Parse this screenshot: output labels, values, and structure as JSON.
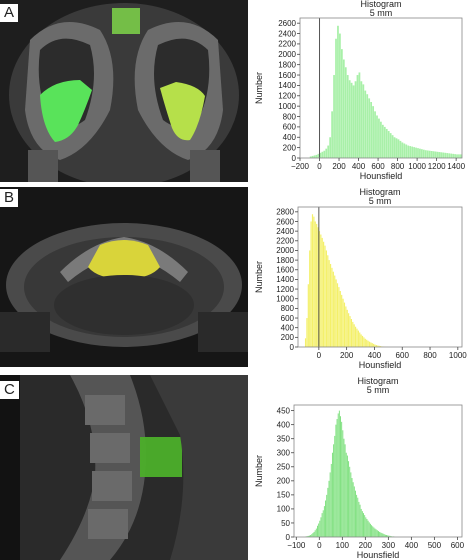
{
  "panels": [
    {
      "label": "A"
    },
    {
      "label": "B"
    },
    {
      "label": "C"
    }
  ],
  "colors": {
    "panel_a": "#a8f0a8",
    "panel_b": "#f4f06a",
    "panel_c": "#7ee07e",
    "marker": "#555555"
  },
  "chart_data": [
    {
      "type": "bar",
      "title": "Histogram",
      "subtitle": "5 mm",
      "xlabel": "Hounsfield",
      "ylabel": "Number",
      "xlim": [
        -200,
        1460
      ],
      "ylim": [
        0,
        2700
      ],
      "xticks": [
        -200,
        0,
        200,
        400,
        600,
        800,
        1000,
        1200,
        1400
      ],
      "xtick_labels": [
        "−200",
        "0",
        "200",
        "400",
        "600",
        "800",
        "1000",
        "1200",
        "1400"
      ],
      "yticks": [
        0,
        200,
        400,
        600,
        800,
        1000,
        1200,
        1400,
        1600,
        1800,
        2000,
        2200,
        2400,
        2600
      ],
      "grid": false,
      "marker_x": 0,
      "bin_start": -100,
      "bin_width": 20,
      "values": [
        30,
        40,
        50,
        60,
        80,
        100,
        120,
        140,
        180,
        240,
        400,
        900,
        1600,
        2300,
        2550,
        2400,
        2100,
        1900,
        1750,
        1600,
        1500,
        1450,
        1400,
        1480,
        1600,
        1650,
        1480,
        1420,
        1300,
        1230,
        1150,
        1080,
        1000,
        900,
        820,
        760,
        700,
        640,
        600,
        560,
        520,
        480,
        440,
        400,
        380,
        360,
        330,
        300,
        280,
        260,
        240,
        230,
        220,
        210,
        200,
        190,
        180,
        170,
        160,
        150,
        145,
        140,
        135,
        130,
        125,
        120,
        115,
        110,
        105,
        100,
        95,
        90,
        85,
        80,
        75,
        70,
        70,
        70
      ]
    },
    {
      "type": "bar",
      "title": "Histogram",
      "subtitle": "5 mm",
      "xlabel": "Hounsfield",
      "ylabel": "Number",
      "xlim": [
        -150,
        1030
      ],
      "ylim": [
        0,
        2900
      ],
      "xticks": [
        0,
        200,
        400,
        600,
        800,
        1000
      ],
      "xtick_labels": [
        "0",
        "200",
        "400",
        "600",
        "800",
        "1000"
      ],
      "yticks": [
        0,
        200,
        400,
        600,
        800,
        1000,
        1200,
        1400,
        1600,
        1800,
        2000,
        2200,
        2400,
        2600,
        2800
      ],
      "grid": false,
      "marker_x": 0,
      "bin_start": -100,
      "bin_width": 10,
      "values": [
        180,
        600,
        1300,
        2000,
        2600,
        2750,
        2700,
        2600,
        2550,
        2480,
        2400,
        2330,
        2260,
        2180,
        2100,
        2000,
        1900,
        1800,
        1720,
        1640,
        1560,
        1480,
        1400,
        1320,
        1240,
        1160,
        1080,
        1000,
        920,
        840,
        770,
        700,
        640,
        580,
        520,
        470,
        420,
        380,
        340,
        300,
        260,
        230,
        200,
        170,
        150,
        130,
        110,
        95,
        80,
        65,
        50,
        40,
        32,
        25,
        18,
        12,
        8,
        5,
        3,
        2
      ]
    },
    {
      "type": "bar",
      "title": "Histogram",
      "subtitle": "5 mm",
      "xlabel": "Hounsfield",
      "ylabel": "Number",
      "xlim": [
        -110,
        620
      ],
      "ylim": [
        0,
        470
      ],
      "xticks": [
        -100,
        0,
        100,
        200,
        300,
        400,
        500,
        600
      ],
      "xtick_labels": [
        "−100",
        "0",
        "100",
        "200",
        "300",
        "400",
        "500",
        "600"
      ],
      "yticks": [
        0,
        50,
        100,
        150,
        200,
        250,
        300,
        350,
        400,
        450
      ],
      "grid": false,
      "marker_x": null,
      "bin_start": -60,
      "bin_width": 5,
      "values": [
        2,
        3,
        4,
        5,
        7,
        10,
        14,
        18,
        24,
        30,
        40,
        48,
        58,
        70,
        85,
        95,
        110,
        130,
        150,
        175,
        200,
        230,
        260,
        300,
        330,
        360,
        400,
        420,
        440,
        450,
        430,
        410,
        380,
        350,
        330,
        300,
        290,
        270,
        250,
        230,
        210,
        195,
        180,
        165,
        150,
        140,
        125,
        115,
        100,
        92,
        85,
        78,
        70,
        64,
        58,
        52,
        47,
        42,
        38,
        34,
        30,
        27,
        24,
        21,
        18,
        16,
        14,
        12,
        10,
        8,
        7,
        6,
        5,
        4,
        3,
        2,
        2,
        1
      ]
    }
  ]
}
